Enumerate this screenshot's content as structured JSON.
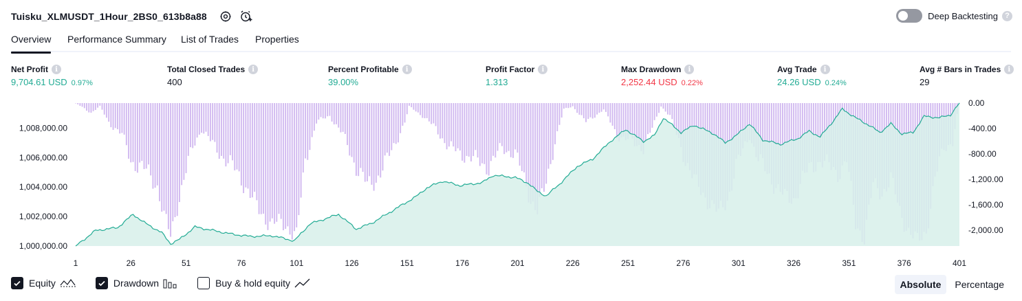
{
  "header": {
    "strategy_name": "Tuisku_XLMUSDT_1Hour_2BS0_613b8a88",
    "settings_icon": "gear-icon",
    "alert_icon": "add-alert-icon"
  },
  "deep_backtesting": {
    "label": "Deep Backtesting",
    "enabled": false
  },
  "tabs": [
    {
      "label": "Overview",
      "active": true
    },
    {
      "label": "Performance Summary",
      "active": false
    },
    {
      "label": "List of Trades",
      "active": false
    },
    {
      "label": "Properties",
      "active": false
    }
  ],
  "metrics": [
    {
      "label": "Net Profit",
      "value": "9,704.61 USD",
      "pct": "0.97%",
      "tone": "pos"
    },
    {
      "label": "Total Closed Trades",
      "value": "400",
      "pct": "",
      "tone": "plain"
    },
    {
      "label": "Percent Profitable",
      "value": "39.00%",
      "pct": "",
      "tone": "pos"
    },
    {
      "label": "Profit Factor",
      "value": "1.313",
      "pct": "",
      "tone": "pos"
    },
    {
      "label": "Max Drawdown",
      "value": "2,252.44 USD",
      "pct": "0.22%",
      "tone": "neg"
    },
    {
      "label": "Avg Trade",
      "value": "24.26 USD",
      "pct": "0.24%",
      "tone": "pos"
    },
    {
      "label": "Avg # Bars in Trades",
      "value": "29",
      "pct": "",
      "tone": "plain"
    }
  ],
  "chart_data": {
    "type": "area",
    "x_ticks": [
      "1",
      "26",
      "51",
      "76",
      "101",
      "126",
      "151",
      "176",
      "201",
      "226",
      "251",
      "276",
      "301",
      "326",
      "351",
      "376",
      "401"
    ],
    "left_axis_ticks": [
      "1,000,000.00",
      "1,002,000.00",
      "1,004,000.00",
      "1,006,000.00",
      "1,008,000.00"
    ],
    "right_axis_ticks": [
      "0.00",
      "-400.00",
      "-800.00",
      "-1,200.00",
      "-1,600.00",
      "-2,000.00"
    ],
    "equity_range": [
      1000000,
      1009704.61
    ],
    "drawdown_range": [
      -2252.44,
      0
    ],
    "equity_anchors": [
      [
        1,
        1000000
      ],
      [
        10,
        1001050
      ],
      [
        20,
        1001250
      ],
      [
        27,
        1002150
      ],
      [
        32,
        1001600
      ],
      [
        40,
        1000900
      ],
      [
        44,
        1000150
      ],
      [
        48,
        1000450
      ],
      [
        55,
        1001300
      ],
      [
        60,
        1001150
      ],
      [
        72,
        1000800
      ],
      [
        80,
        1000650
      ],
      [
        90,
        1000700
      ],
      [
        100,
        1000350
      ],
      [
        107,
        1001500
      ],
      [
        115,
        1001900
      ],
      [
        120,
        1002150
      ],
      [
        128,
        1001150
      ],
      [
        135,
        1001550
      ],
      [
        145,
        1002450
      ],
      [
        150,
        1002900
      ],
      [
        155,
        1003350
      ],
      [
        160,
        1003950
      ],
      [
        167,
        1004400
      ],
      [
        175,
        1004100
      ],
      [
        185,
        1004300
      ],
      [
        190,
        1004800
      ],
      [
        200,
        1004650
      ],
      [
        206,
        1004250
      ],
      [
        210,
        1003700
      ],
      [
        214,
        1003400
      ],
      [
        220,
        1004200
      ],
      [
        228,
        1005400
      ],
      [
        235,
        1005900
      ],
      [
        243,
        1007100
      ],
      [
        250,
        1007900
      ],
      [
        258,
        1007100
      ],
      [
        263,
        1007500
      ],
      [
        267,
        1008700
      ],
      [
        275,
        1007700
      ],
      [
        281,
        1008200
      ],
      [
        290,
        1007600
      ],
      [
        295,
        1007000
      ],
      [
        300,
        1007500
      ],
      [
        306,
        1008300
      ],
      [
        312,
        1007200
      ],
      [
        320,
        1006900
      ],
      [
        328,
        1007300
      ],
      [
        333,
        1007800
      ],
      [
        338,
        1007400
      ],
      [
        344,
        1008500
      ],
      [
        348,
        1009300
      ],
      [
        354,
        1008700
      ],
      [
        360,
        1008200
      ],
      [
        365,
        1007700
      ],
      [
        370,
        1008300
      ],
      [
        375,
        1007600
      ],
      [
        380,
        1007700
      ],
      [
        385,
        1008800
      ],
      [
        392,
        1008700
      ],
      [
        397,
        1008900
      ],
      [
        401,
        1009704.61
      ]
    ],
    "drawdown_anchors": [
      [
        1,
        0
      ],
      [
        8,
        -150
      ],
      [
        12,
        -50
      ],
      [
        16,
        -300
      ],
      [
        22,
        -500
      ],
      [
        26,
        -900
      ],
      [
        30,
        -1000
      ],
      [
        34,
        -1100
      ],
      [
        38,
        -1300
      ],
      [
        41,
        -1800
      ],
      [
        44,
        -2100
      ],
      [
        47,
        -1600
      ],
      [
        50,
        -1200
      ],
      [
        54,
        -700
      ],
      [
        58,
        -400
      ],
      [
        64,
        -700
      ],
      [
        72,
        -1000
      ],
      [
        78,
        -1300
      ],
      [
        84,
        -1700
      ],
      [
        90,
        -1900
      ],
      [
        96,
        -1900
      ],
      [
        101,
        -2100
      ],
      [
        105,
        -900
      ],
      [
        110,
        -300
      ],
      [
        116,
        -200
      ],
      [
        122,
        -500
      ],
      [
        128,
        -1000
      ],
      [
        133,
        -1300
      ],
      [
        137,
        -1200
      ],
      [
        142,
        -900
      ],
      [
        146,
        -600
      ],
      [
        150,
        -300
      ],
      [
        152,
        -50
      ],
      [
        158,
        -200
      ],
      [
        164,
        -400
      ],
      [
        170,
        -700
      ],
      [
        176,
        -800
      ],
      [
        182,
        -900
      ],
      [
        188,
        -1000
      ],
      [
        194,
        -700
      ],
      [
        200,
        -800
      ],
      [
        203,
        -1100
      ],
      [
        207,
        -1500
      ],
      [
        210,
        -1700
      ],
      [
        213,
        -1400
      ],
      [
        218,
        -600
      ],
      [
        222,
        -100
      ],
      [
        226,
        -50
      ],
      [
        232,
        -300
      ],
      [
        240,
        -100
      ],
      [
        246,
        -500
      ],
      [
        252,
        -600
      ],
      [
        258,
        -700
      ],
      [
        262,
        -400
      ],
      [
        266,
        -50
      ],
      [
        270,
        -200
      ],
      [
        276,
        -800
      ],
      [
        282,
        -1300
      ],
      [
        288,
        -1550
      ],
      [
        292,
        -1750
      ],
      [
        296,
        -1500
      ],
      [
        300,
        -1000
      ],
      [
        306,
        -500
      ],
      [
        310,
        -900
      ],
      [
        316,
        -1200
      ],
      [
        322,
        -1500
      ],
      [
        326,
        -1500
      ],
      [
        330,
        -1200
      ],
      [
        334,
        -1000
      ],
      [
        338,
        -900
      ],
      [
        342,
        -1000
      ],
      [
        346,
        -1100
      ],
      [
        350,
        -900
      ],
      [
        354,
        -1900
      ],
      [
        358,
        -2100
      ],
      [
        362,
        -1300
      ],
      [
        366,
        -1400
      ],
      [
        370,
        -1200
      ],
      [
        374,
        -1700
      ],
      [
        378,
        -2000
      ],
      [
        382,
        -2200
      ],
      [
        386,
        -2000
      ],
      [
        390,
        -1200
      ],
      [
        394,
        -700
      ],
      [
        398,
        -600
      ],
      [
        401,
        0
      ]
    ],
    "equity_line_color": "#22ab94",
    "equity_fill_color": "#d7f0ea",
    "drawdown_color": "#d1b9f0",
    "grid": false
  },
  "legend": [
    {
      "label": "Equity",
      "checked": true,
      "icon": "equity-line-icon"
    },
    {
      "label": "Drawdown",
      "checked": true,
      "icon": "drawdown-bars-icon"
    },
    {
      "label": "Buy & hold equity",
      "checked": false,
      "icon": "buy-hold-line-icon"
    }
  ],
  "modes": [
    {
      "label": "Absolute",
      "active": true
    },
    {
      "label": "Percentage",
      "active": false
    }
  ]
}
